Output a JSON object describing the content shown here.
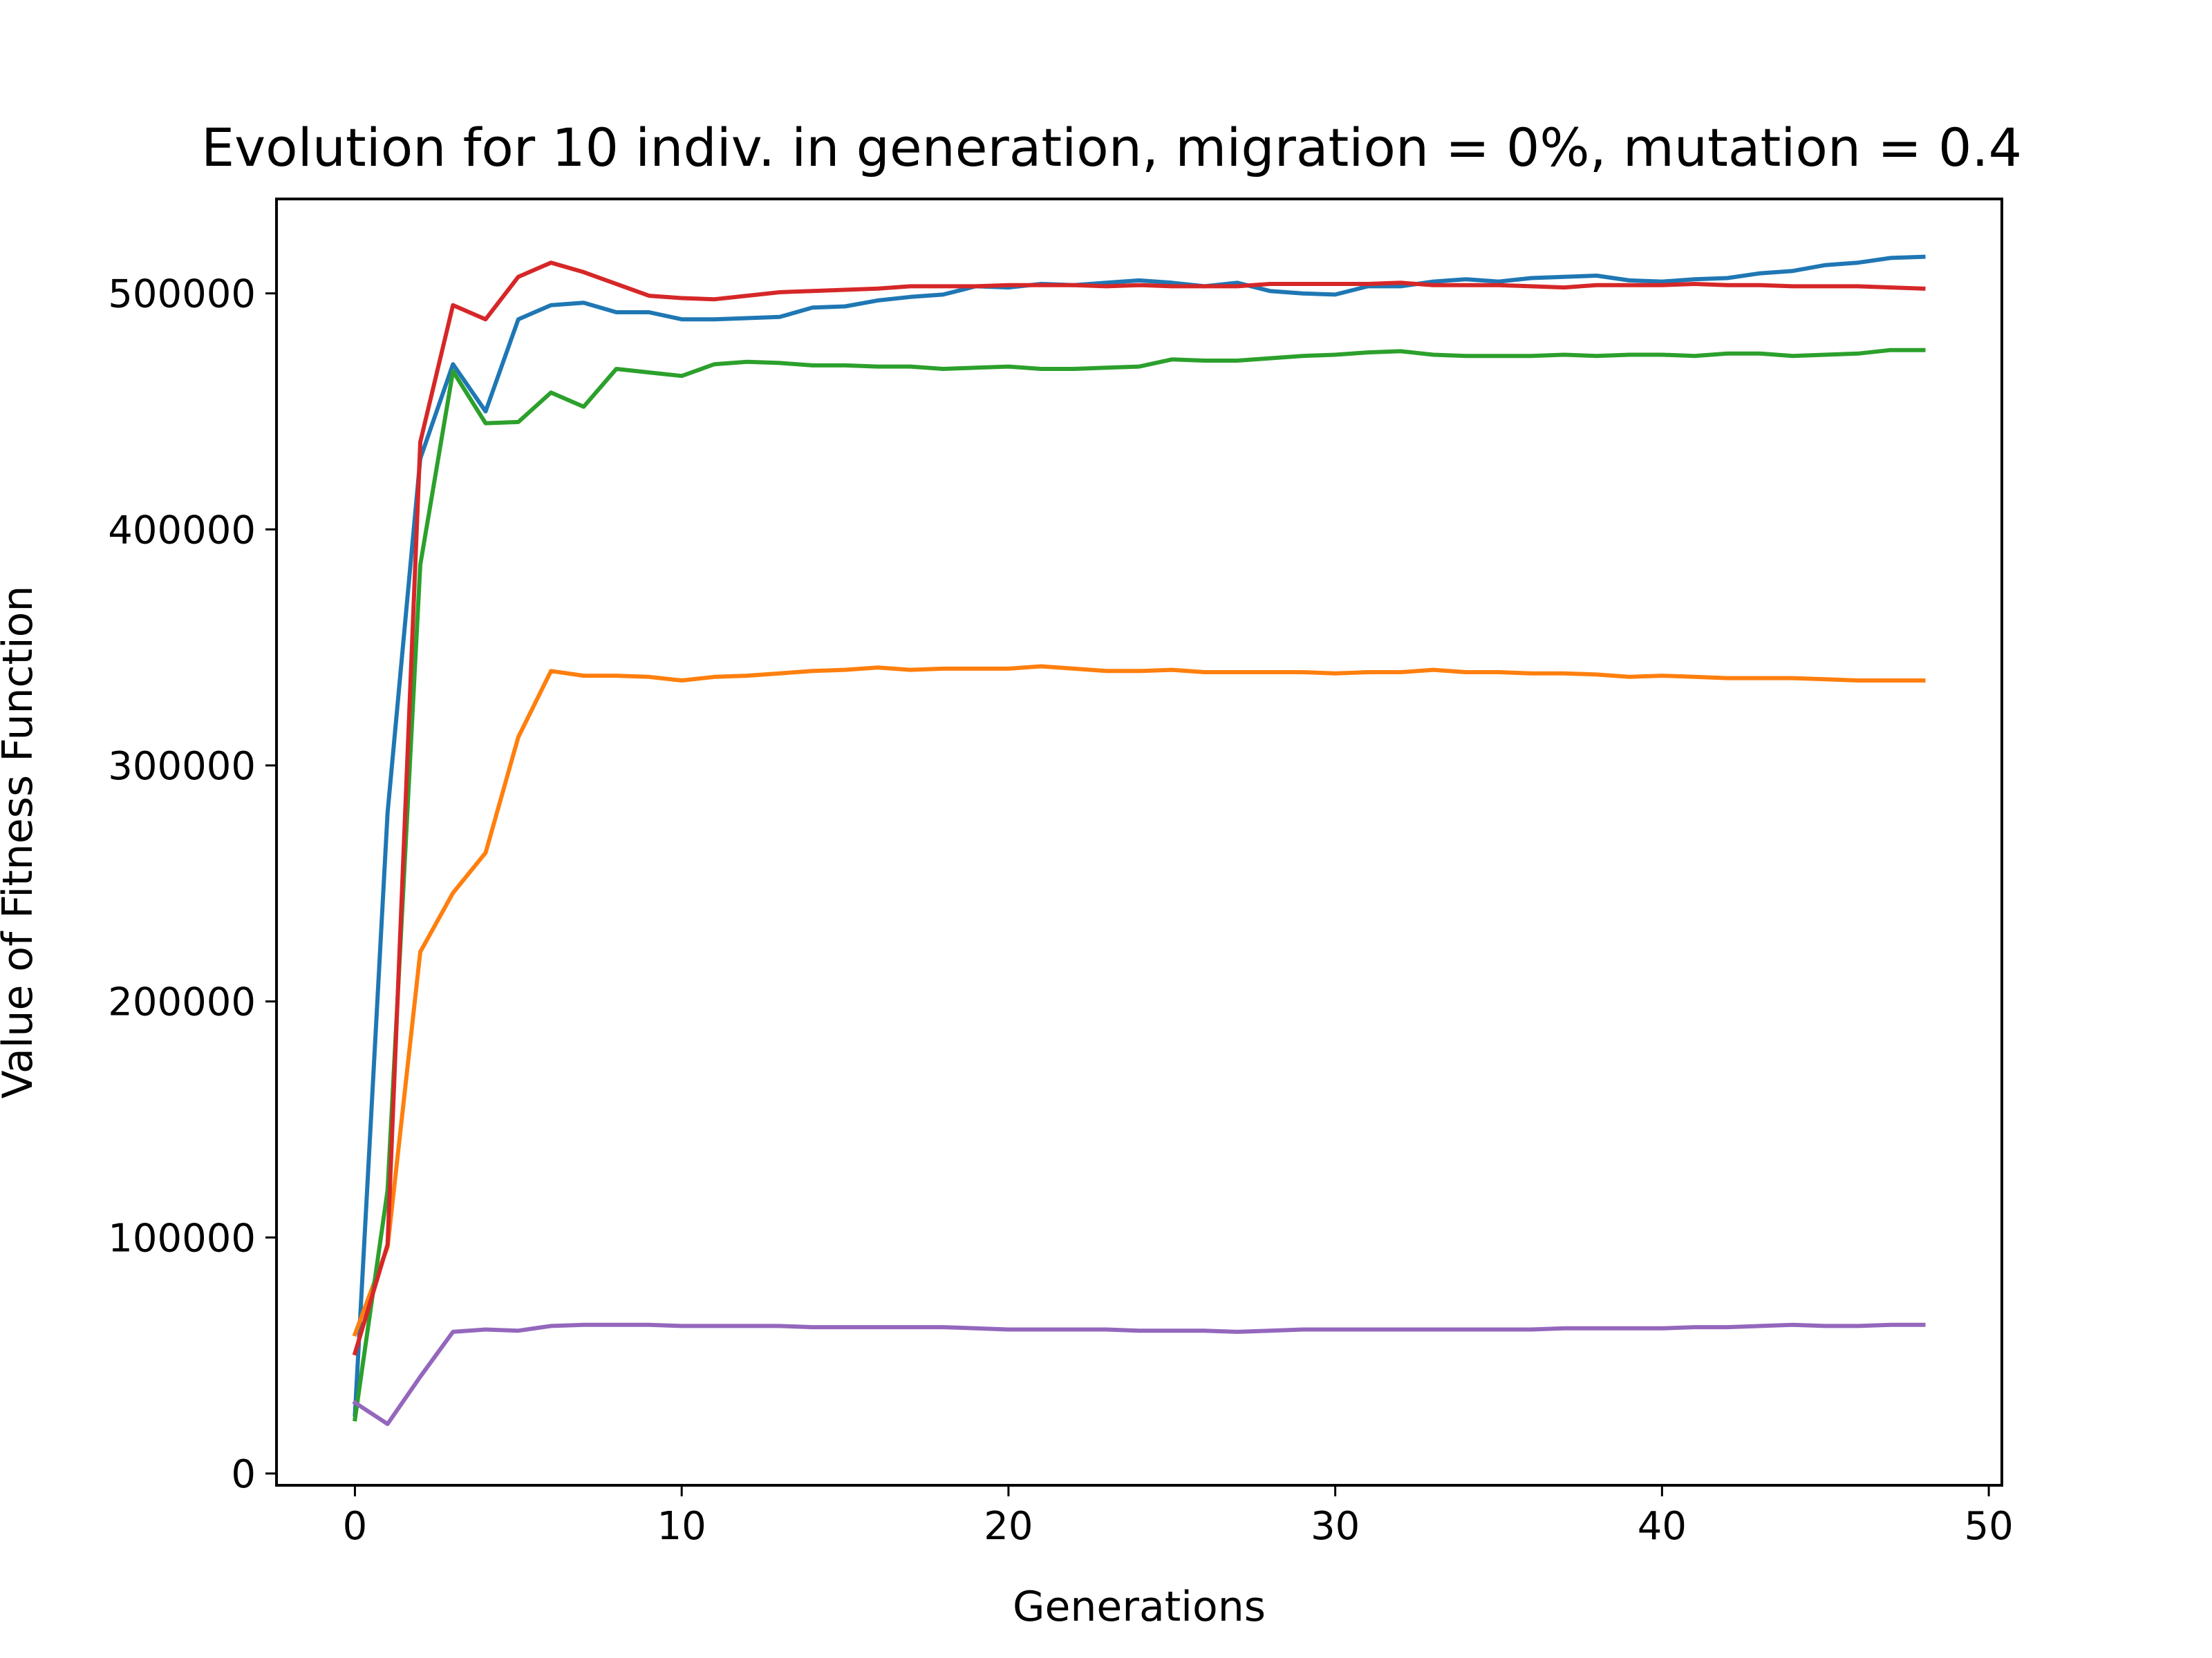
{
  "chart_data": {
    "type": "line",
    "title": "Evolution for 10 indiv. in generation, migration = 0%, mutation = 0.4",
    "xlabel": "Generations",
    "ylabel": "Value of Fitness Function",
    "xlim": [
      -2.4,
      50.4
    ],
    "ylim": [
      -5000,
      540000
    ],
    "xticks": [
      0,
      10,
      20,
      30,
      40,
      50
    ],
    "yticks": [
      0,
      100000,
      200000,
      300000,
      400000,
      500000
    ],
    "grid": false,
    "x": [
      0,
      1,
      2,
      3,
      4,
      5,
      6,
      7,
      8,
      9,
      10,
      11,
      12,
      13,
      14,
      15,
      16,
      17,
      18,
      19,
      20,
      21,
      22,
      23,
      24,
      25,
      26,
      27,
      28,
      29,
      30,
      31,
      32,
      33,
      34,
      35,
      36,
      37,
      38,
      39,
      40,
      41,
      42,
      43,
      44,
      45,
      46,
      47,
      48
    ],
    "series": [
      {
        "color": "#1f77b4",
        "values": [
          25000,
          280000,
          430000,
          470000,
          450000,
          489000,
          495000,
          496000,
          492000,
          492000,
          489000,
          489000,
          489500,
          490000,
          494000,
          494500,
          497000,
          498500,
          499500,
          503000,
          502500,
          504000,
          503500,
          504500,
          505500,
          504500,
          503000,
          504500,
          501000,
          500000,
          499500,
          503000,
          503000,
          505000,
          506000,
          505000,
          506500,
          507000,
          507500,
          505500,
          505000,
          506000,
          506500,
          508500,
          509500,
          512000,
          513000,
          515000,
          515500
        ]
      },
      {
        "color": "#ff7f0e",
        "values": [
          59000,
          96000,
          221000,
          246000,
          263000,
          312000,
          340000,
          338000,
          338000,
          337500,
          336000,
          337500,
          338000,
          339000,
          340000,
          340500,
          341500,
          340500,
          341000,
          341000,
          341000,
          342000,
          341000,
          340000,
          340000,
          340500,
          339500,
          339500,
          339500,
          339500,
          339000,
          339500,
          339500,
          340500,
          339500,
          339500,
          339000,
          339000,
          338500,
          337500,
          338000,
          337500,
          337000,
          337000,
          337000,
          336500,
          336000,
          336000,
          336000
        ]
      },
      {
        "color": "#2ca02c",
        "values": [
          23000,
          120000,
          385000,
          467000,
          445000,
          445500,
          458000,
          452000,
          468000,
          466500,
          465000,
          470000,
          471000,
          470500,
          469500,
          469500,
          469000,
          469000,
          468000,
          468500,
          469000,
          468000,
          468000,
          468500,
          469000,
          472000,
          471500,
          471500,
          472500,
          473500,
          474000,
          475000,
          475500,
          474000,
          473500,
          473500,
          473500,
          474000,
          473500,
          474000,
          474000,
          473500,
          474500,
          474500,
          473500,
          474000,
          474500,
          476000,
          476000
        ]
      },
      {
        "color": "#d62728",
        "values": [
          51000,
          97000,
          437000,
          495000,
          489000,
          507000,
          513000,
          509000,
          504000,
          499000,
          498000,
          497500,
          499000,
          500500,
          501000,
          501500,
          502000,
          503000,
          503000,
          503000,
          503500,
          503500,
          503500,
          503000,
          503500,
          503000,
          503000,
          503000,
          504000,
          504000,
          504000,
          504000,
          504500,
          503500,
          503500,
          503500,
          503000,
          502500,
          503500,
          503500,
          503500,
          504000,
          503500,
          503500,
          503000,
          503000,
          503000,
          502500,
          502000
        ]
      },
      {
        "color": "#9467bd",
        "values": [
          30000,
          21000,
          41000,
          60000,
          61000,
          60500,
          62500,
          63000,
          63000,
          63000,
          62500,
          62500,
          62500,
          62500,
          62000,
          62000,
          62000,
          62000,
          62000,
          61500,
          61000,
          61000,
          61000,
          61000,
          60500,
          60500,
          60500,
          60000,
          60500,
          61000,
          61000,
          61000,
          61000,
          61000,
          61000,
          61000,
          61000,
          61500,
          61500,
          61500,
          61500,
          62000,
          62000,
          62500,
          63000,
          62500,
          62500,
          63000,
          63000
        ]
      }
    ]
  }
}
